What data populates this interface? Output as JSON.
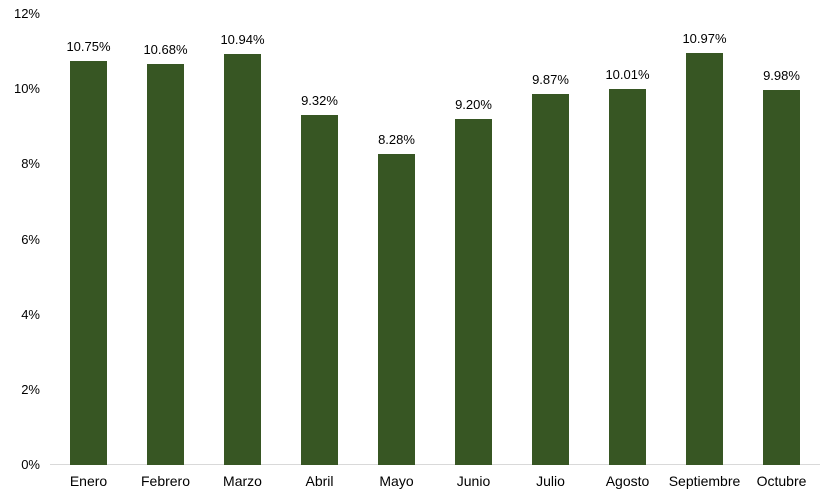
{
  "chart_data": {
    "type": "bar",
    "title": "",
    "xlabel": "",
    "ylabel": "",
    "categories": [
      "Enero",
      "Febrero",
      "Marzo",
      "Abril",
      "Mayo",
      "Junio",
      "Julio",
      "Agosto",
      "Septiembre",
      "Octubre"
    ],
    "values": [
      10.75,
      10.68,
      10.94,
      9.32,
      8.28,
      9.2,
      9.87,
      10.01,
      10.97,
      9.98
    ],
    "data_labels": [
      "10.75%",
      "10.68%",
      "10.94%",
      "9.32%",
      "8.28%",
      "9.20%",
      "9.87%",
      "10.01%",
      "10.97%",
      "9.98%"
    ],
    "y_ticks": [
      "0%",
      "2%",
      "4%",
      "6%",
      "8%",
      "10%",
      "12%"
    ],
    "y_tick_values": [
      0,
      2,
      4,
      6,
      8,
      10,
      12
    ],
    "ylim": [
      0,
      12
    ],
    "grid": false,
    "legend": false,
    "bar_color": "#375623",
    "axis_line_color": "#D9D9D9",
    "label_color": "#000000"
  }
}
